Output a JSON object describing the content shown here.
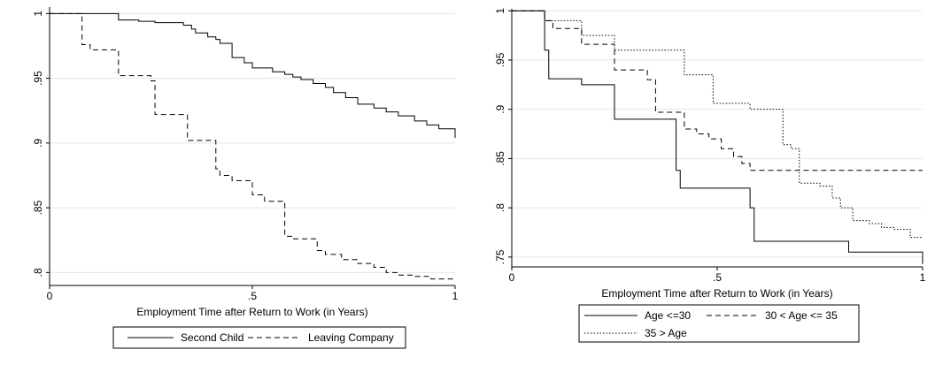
{
  "chart_data": [
    {
      "type": "line",
      "step": true,
      "xlabel": "Employment Time after Return to Work (in Years)",
      "ylabel": "",
      "xlim": [
        0,
        1
      ],
      "ylim": [
        0.79,
        1.005
      ],
      "xticks": [
        0,
        0.5,
        1
      ],
      "xtick_labels": [
        "0",
        ".5",
        "1"
      ],
      "yticks": [
        0.8,
        0.85,
        0.9,
        0.95,
        1
      ],
      "ytick_labels": [
        ".8",
        ".85",
        ".9",
        ".95",
        "1"
      ],
      "grid": true,
      "legend_position": "bottom",
      "series": [
        {
          "name": "Second Child",
          "dash": "solid",
          "x": [
            0,
            0.17,
            0.22,
            0.26,
            0.33,
            0.35,
            0.36,
            0.39,
            0.41,
            0.42,
            0.45,
            0.48,
            0.5,
            0.55,
            0.58,
            0.6,
            0.62,
            0.65,
            0.68,
            0.7,
            0.73,
            0.76,
            0.8,
            0.83,
            0.86,
            0.9,
            0.93,
            0.96,
            1
          ],
          "y": [
            1,
            0.995,
            0.994,
            0.993,
            0.991,
            0.988,
            0.985,
            0.982,
            0.98,
            0.977,
            0.966,
            0.962,
            0.958,
            0.955,
            0.953,
            0.951,
            0.949,
            0.946,
            0.943,
            0.939,
            0.935,
            0.93,
            0.927,
            0.924,
            0.921,
            0.917,
            0.914,
            0.911,
            0.904
          ]
        },
        {
          "name": "Leaving Company",
          "dash": "dashed",
          "x": [
            0,
            0.08,
            0.1,
            0.17,
            0.25,
            0.26,
            0.34,
            0.41,
            0.42,
            0.45,
            0.5,
            0.53,
            0.58,
            0.6,
            0.66,
            0.68,
            0.72,
            0.76,
            0.8,
            0.83,
            0.86,
            0.9,
            0.94,
            1
          ],
          "y": [
            1,
            0.976,
            0.972,
            0.952,
            0.948,
            0.922,
            0.902,
            0.88,
            0.875,
            0.871,
            0.86,
            0.855,
            0.828,
            0.826,
            0.817,
            0.814,
            0.81,
            0.807,
            0.804,
            0.8,
            0.798,
            0.797,
            0.795,
            0.795
          ]
        }
      ]
    },
    {
      "type": "line",
      "step": true,
      "xlabel": "Employment Time after Return to Work (in Years)",
      "ylabel": "",
      "xlim": [
        0,
        1
      ],
      "ylim": [
        0.74,
        1.002
      ],
      "xticks": [
        0,
        0.5,
        1
      ],
      "xtick_labels": [
        "0",
        ".5",
        "1"
      ],
      "yticks": [
        0.75,
        0.8,
        0.85,
        0.9,
        0.95,
        1
      ],
      "ytick_labels": [
        ".75",
        ".8",
        ".85",
        ".9",
        ".95",
        "1"
      ],
      "grid": true,
      "legend_position": "bottom",
      "series": [
        {
          "name": "Age <=30",
          "dash": "solid",
          "x": [
            0,
            0.08,
            0.09,
            0.17,
            0.25,
            0.4,
            0.41,
            0.58,
            0.59,
            0.82,
            1
          ],
          "y": [
            1,
            0.96,
            0.931,
            0.925,
            0.89,
            0.838,
            0.82,
            0.8,
            0.766,
            0.755,
            0.743
          ]
        },
        {
          "name": "30 < Age <= 35",
          "dash": "dashed",
          "x": [
            0,
            0.08,
            0.1,
            0.17,
            0.25,
            0.33,
            0.35,
            0.42,
            0.45,
            0.48,
            0.51,
            0.54,
            0.56,
            0.58,
            1
          ],
          "y": [
            1,
            0.99,
            0.982,
            0.966,
            0.94,
            0.93,
            0.897,
            0.88,
            0.875,
            0.87,
            0.86,
            0.852,
            0.845,
            0.838,
            0.838
          ]
        },
        {
          "name": "35 > Age",
          "dash": "dotted",
          "x": [
            0,
            0.08,
            0.17,
            0.25,
            0.33,
            0.42,
            0.49,
            0.58,
            0.66,
            0.68,
            0.7,
            0.75,
            0.78,
            0.8,
            0.83,
            0.87,
            0.9,
            0.93,
            0.97,
            1
          ],
          "y": [
            1,
            0.99,
            0.975,
            0.96,
            0.96,
            0.935,
            0.906,
            0.9,
            0.864,
            0.86,
            0.825,
            0.822,
            0.81,
            0.8,
            0.787,
            0.784,
            0.78,
            0.778,
            0.77,
            0.77
          ]
        }
      ]
    }
  ]
}
